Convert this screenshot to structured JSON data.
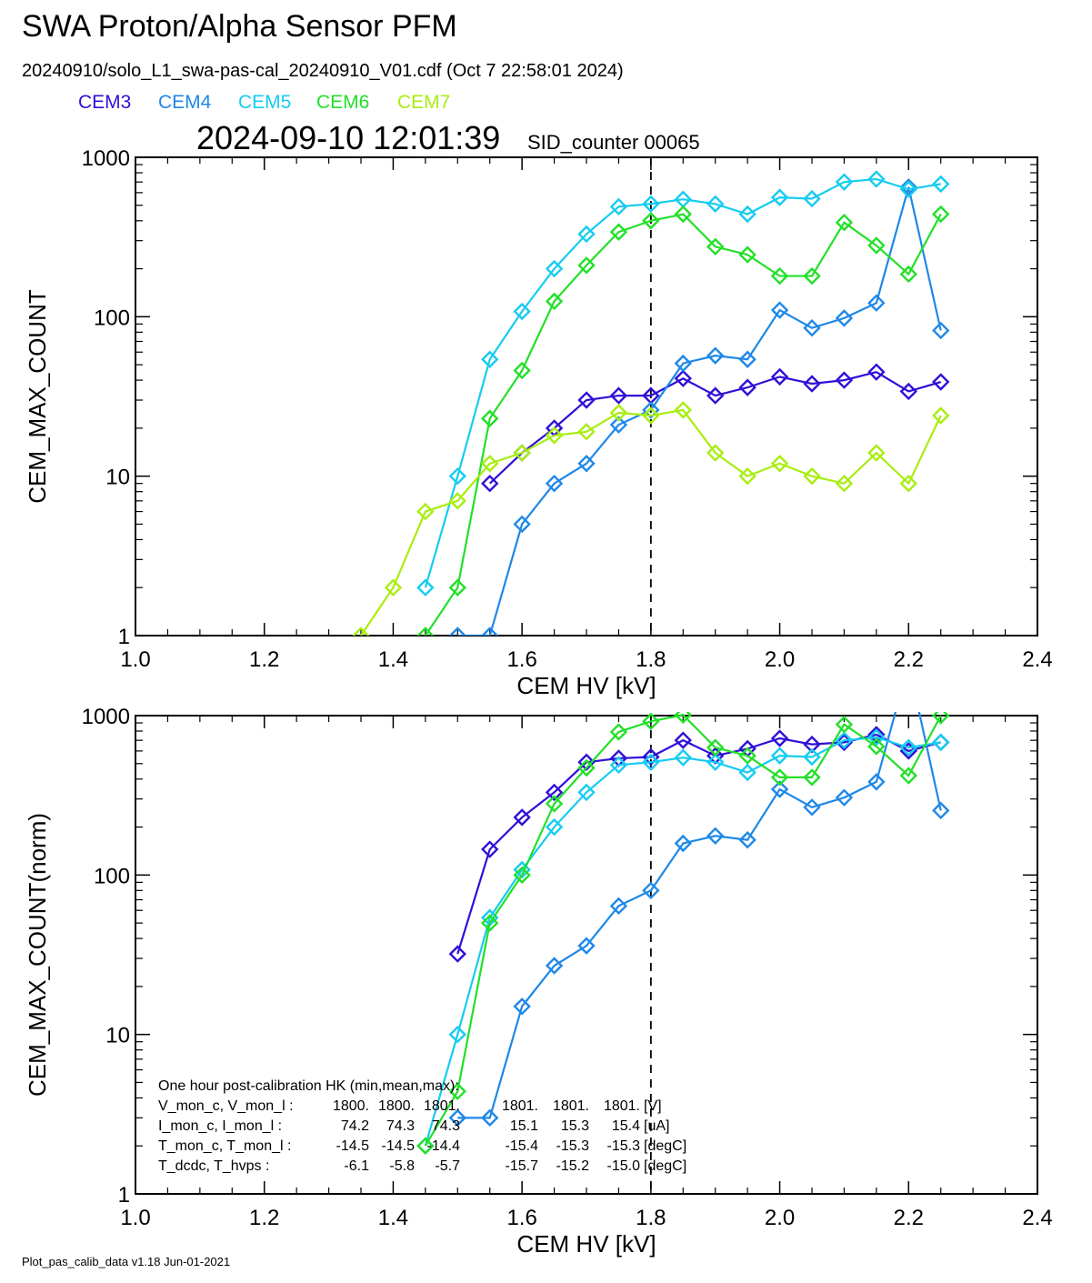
{
  "header": {
    "title": "SWA Proton/Alpha Sensor PFM",
    "file_line": "20240910/solo_L1_swa-pas-cal_20240910_V01.cdf  (Oct  7 22:58:01 2024)",
    "timestamp": "2024-09-10 12:01:39",
    "sid_counter": "SID_counter 00065"
  },
  "legend": [
    {
      "label": "CEM3",
      "color": "#2e10d8"
    },
    {
      "label": "CEM4",
      "color": "#1e88e8"
    },
    {
      "label": "CEM5",
      "color": "#16ccf0"
    },
    {
      "label": "CEM6",
      "color": "#22e028"
    },
    {
      "label": "CEM7",
      "color": "#a8ee10"
    }
  ],
  "footer": "Plot_pas_calib_data v1.18 Jun-01-2021",
  "hk_box": {
    "title": "One hour post-calibration HK (min,mean,max):",
    "rows": [
      {
        "label": "V_mon_c, V_mon_l :",
        "v1": "1800.",
        "v2": "1800.",
        "v3": "1801.",
        "v4": "1801.",
        "v5": "1801.",
        "v6": "1801.",
        "unit": "[V]"
      },
      {
        "label": "I_mon_c,  I_mon_l :",
        "v1": "74.2",
        "v2": "74.3",
        "v3": "74.3",
        "v4": "15.1",
        "v5": "15.3",
        "v6": "15.4",
        "unit": "[uA]"
      },
      {
        "label": "T_mon_c, T_mon_l :",
        "v1": "-14.5",
        "v2": "-14.5",
        "v3": "-14.4",
        "v4": "-15.4",
        "v5": "-15.3",
        "v6": "-15.3",
        "unit": "[degC]"
      },
      {
        "label": "T_dcdc,    T_hvps :",
        "v1": "-6.1",
        "v2": "-5.8",
        "v3": "-5.7",
        "v4": "-15.7",
        "v5": "-15.2",
        "v6": "-15.0",
        "unit": "[degC]"
      }
    ]
  },
  "chart_data": [
    {
      "type": "line",
      "xlabel": "CEM HV [kV]",
      "ylabel": "CEM_MAX_COUNT",
      "xlim": [
        1.0,
        2.4
      ],
      "ylim": [
        1,
        1000
      ],
      "yscale": "log",
      "xticks": [
        "1.0",
        "1.2",
        "1.4",
        "1.6",
        "1.8",
        "2.0",
        "2.2",
        "2.4"
      ],
      "yticks": [
        "1",
        "10",
        "100",
        "1000"
      ],
      "vline_x": 1.8,
      "x": [
        1.35,
        1.4,
        1.45,
        1.5,
        1.55,
        1.6,
        1.65,
        1.7,
        1.75,
        1.8,
        1.85,
        1.9,
        1.95,
        2.0,
        2.05,
        2.1,
        2.15,
        2.2,
        2.25
      ],
      "series": [
        {
          "name": "CEM3",
          "color": "#2e10d8",
          "values": [
            null,
            null,
            null,
            null,
            9,
            14,
            20,
            30,
            32,
            32,
            41,
            32,
            36,
            42,
            38,
            40,
            45,
            34,
            39
          ]
        },
        {
          "name": "CEM4",
          "color": "#1e88e8",
          "values": [
            null,
            null,
            null,
            1,
            1,
            5,
            9,
            12,
            21,
            26,
            51,
            57,
            54,
            110,
            85,
            98,
            122,
            650,
            82
          ]
        },
        {
          "name": "CEM5",
          "color": "#16ccf0",
          "values": [
            null,
            null,
            2,
            10,
            54,
            108,
            200,
            330,
            490,
            510,
            545,
            510,
            440,
            560,
            550,
            700,
            730,
            630,
            680
          ]
        },
        {
          "name": "CEM6",
          "color": "#22e028",
          "values": [
            null,
            null,
            1,
            2,
            23,
            46,
            125,
            210,
            340,
            400,
            440,
            275,
            245,
            180,
            180,
            390,
            280,
            185,
            440
          ]
        },
        {
          "name": "CEM7",
          "color": "#a8ee10",
          "values": [
            1,
            2,
            6,
            7,
            12,
            14,
            18,
            19,
            25,
            24,
            26,
            14,
            10,
            12,
            10,
            9,
            14,
            9,
            24
          ]
        }
      ]
    },
    {
      "type": "line",
      "xlabel": "CEM HV [kV]",
      "ylabel": "CEM_MAX_COUNT(norm)",
      "xlim": [
        1.0,
        2.4
      ],
      "ylim": [
        1,
        1000
      ],
      "yscale": "log",
      "xticks": [
        "1.0",
        "1.2",
        "1.4",
        "1.6",
        "1.8",
        "2.0",
        "2.2",
        "2.4"
      ],
      "yticks": [
        "1",
        "10",
        "100",
        "1000"
      ],
      "vline_x": 1.8,
      "x": [
        1.35,
        1.4,
        1.45,
        1.5,
        1.55,
        1.6,
        1.65,
        1.7,
        1.75,
        1.8,
        1.85,
        1.9,
        1.95,
        2.0,
        2.05,
        2.1,
        2.15,
        2.2,
        2.25
      ],
      "series": [
        {
          "name": "CEM3",
          "color": "#2e10d8",
          "values": [
            null,
            null,
            null,
            32,
            145,
            230,
            330,
            510,
            540,
            550,
            700,
            560,
            620,
            720,
            660,
            680,
            760,
            600,
            680
          ]
        },
        {
          "name": "CEM4",
          "color": "#1e88e8",
          "values": [
            null,
            null,
            null,
            3,
            3,
            15,
            27,
            36,
            64,
            80,
            158,
            176,
            166,
            345,
            266,
            306,
            384,
            2100,
            254
          ]
        },
        {
          "name": "CEM5",
          "color": "#16ccf0",
          "values": [
            null,
            null,
            2,
            10,
            54,
            108,
            200,
            330,
            490,
            510,
            545,
            510,
            440,
            560,
            550,
            700,
            730,
            630,
            680
          ]
        },
        {
          "name": "CEM6",
          "color": "#22e028",
          "values": [
            null,
            null,
            2,
            4.4,
            50,
            100,
            280,
            470,
            790,
            920,
            1010,
            630,
            560,
            410,
            410,
            880,
            640,
            420,
            1000
          ]
        }
      ]
    }
  ]
}
